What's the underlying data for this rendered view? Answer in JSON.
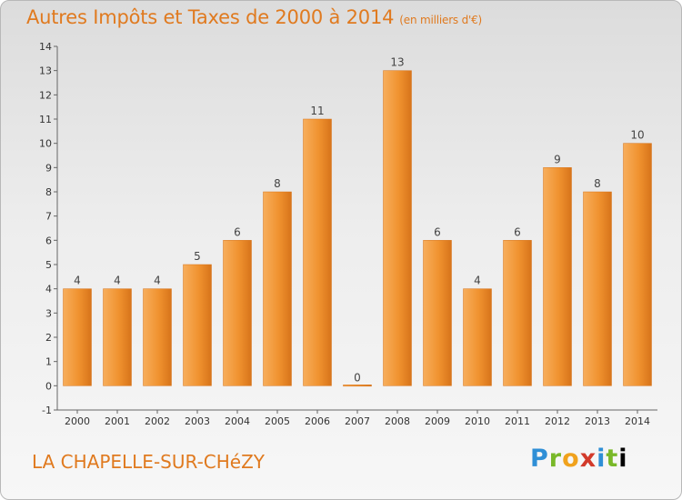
{
  "title": "Autres Impôts et Taxes de 2000 à 2014",
  "unit": "(en milliers d'€)",
  "commune": "LA CHAPELLE-SUR-CHéZY",
  "brand": "Proxiti",
  "colors": {
    "bar": "#f0922f",
    "barLight": "#f7ae5c",
    "barDark": "#d7741a",
    "accent": "#e07a1f"
  },
  "chart_data": {
    "type": "bar",
    "categories": [
      "2000",
      "2001",
      "2002",
      "2003",
      "2004",
      "2005",
      "2006",
      "2007",
      "2008",
      "2009",
      "2010",
      "2011",
      "2012",
      "2013",
      "2014"
    ],
    "values": [
      4,
      4,
      4,
      5,
      6,
      8,
      11,
      0,
      13,
      6,
      4,
      6,
      9,
      8,
      10
    ],
    "title": "Autres Impôts et Taxes de 2000 à 2014",
    "xlabel": "",
    "ylabel": "",
    "ylim": [
      -1,
      14
    ],
    "yticks": [
      -1,
      0,
      1,
      2,
      3,
      4,
      5,
      6,
      7,
      8,
      9,
      10,
      11,
      12,
      13,
      14
    ],
    "grid": false,
    "legend": "none"
  }
}
